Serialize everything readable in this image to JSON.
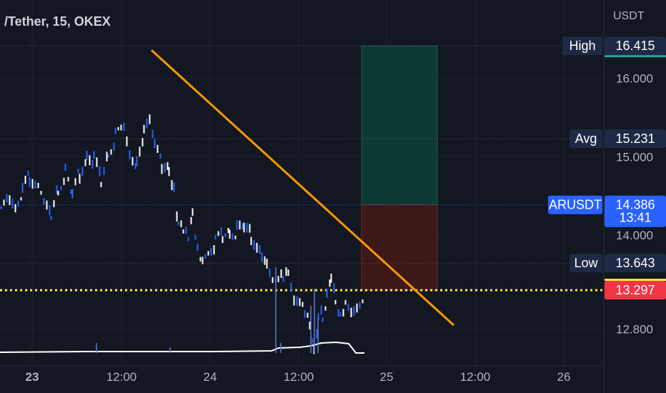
{
  "header": {
    "title": "/Tether, 15, OKEX",
    "unit": "USDT"
  },
  "chart_data": {
    "type": "candlestick",
    "symbol": "ARUSDT",
    "interval": "15",
    "exchange": "OKEX",
    "ylim": [
      12.35,
      17.0
    ],
    "y_ticks": [
      "16.000",
      "15.000",
      "14.000",
      "12.800"
    ],
    "x_ticks": [
      "23",
      "12:00",
      "24",
      "12:00",
      "25",
      "12:00",
      "26"
    ],
    "price_series": [
      [
        0,
        14.35
      ],
      [
        8,
        14.4
      ],
      [
        20,
        14.3
      ],
      [
        30,
        14.55
      ],
      [
        40,
        14.75
      ],
      [
        52,
        14.6
      ],
      [
        60,
        14.35
      ],
      [
        70,
        14.25
      ],
      [
        80,
        14.6
      ],
      [
        90,
        14.8
      ],
      [
        100,
        14.5
      ],
      [
        110,
        14.8
      ],
      [
        120,
        15.0
      ],
      [
        130,
        14.95
      ],
      [
        140,
        14.7
      ],
      [
        150,
        15.05
      ],
      [
        160,
        15.25
      ],
      [
        172,
        15.4
      ],
      [
        180,
        15.1
      ],
      [
        190,
        14.9
      ],
      [
        200,
        15.3
      ],
      [
        208,
        15.4
      ],
      [
        215,
        15.1
      ],
      [
        225,
        14.9
      ],
      [
        235,
        14.85
      ],
      [
        242,
        14.6
      ],
      [
        248,
        14.1
      ],
      [
        255,
        14.05
      ],
      [
        262,
        14.0
      ],
      [
        268,
        14.3
      ],
      [
        275,
        13.8
      ],
      [
        282,
        13.6
      ],
      [
        290,
        13.75
      ],
      [
        300,
        13.9
      ],
      [
        310,
        14.0
      ],
      [
        320,
        14.05
      ],
      [
        330,
        14.05
      ],
      [
        340,
        14.1
      ],
      [
        350,
        14.0
      ],
      [
        358,
        13.9
      ],
      [
        365,
        13.8
      ],
      [
        372,
        13.7
      ],
      [
        380,
        13.5
      ],
      [
        388,
        13.45
      ],
      [
        395,
        13.5
      ],
      [
        402,
        13.6
      ],
      [
        410,
        13.2
      ],
      [
        418,
        13.1
      ],
      [
        425,
        13.0
      ],
      [
        432,
        12.9
      ],
      [
        438,
        12.55
      ],
      [
        444,
        12.9
      ],
      [
        450,
        13.0
      ],
      [
        456,
        13.2
      ],
      [
        462,
        13.45
      ],
      [
        468,
        13.2
      ],
      [
        475,
        13.0
      ],
      [
        482,
        13.1
      ],
      [
        490,
        13.05
      ],
      [
        498,
        13.15
      ],
      [
        506,
        13.2
      ],
      [
        510,
        13.25
      ]
    ],
    "volume_series": [
      [
        0,
        493
      ],
      [
        120,
        492
      ],
      [
        200,
        492
      ],
      [
        300,
        492
      ],
      [
        380,
        491
      ],
      [
        390,
        487
      ],
      [
        420,
        486
      ],
      [
        435,
        484
      ],
      [
        450,
        480
      ],
      [
        470,
        479
      ],
      [
        488,
        481
      ],
      [
        498,
        494
      ],
      [
        510,
        494
      ]
    ],
    "volume_spikes": [
      [
        135,
        480
      ],
      [
        238,
        486
      ],
      [
        386,
        374
      ],
      [
        393,
        480
      ],
      [
        435,
        428
      ],
      [
        440,
        404
      ],
      [
        445,
        445
      ]
    ],
    "trendline": {
      "from_price": 16.36,
      "to_price": 12.85,
      "color": "#ff9800"
    },
    "position": {
      "entry": 14.386,
      "target": 16.415,
      "stop": 13.297,
      "profit_color": "#0d3b34",
      "loss_color": "#3d1818"
    },
    "stop_line": {
      "price": 13.297,
      "color": "#ffeb3b"
    },
    "tags": [
      {
        "label": "High",
        "value": "16.415",
        "value_color": "#1e2a45",
        "accent": "#26a69a"
      },
      {
        "label": "Avg",
        "value": "15.231",
        "value_color": "#1e2a45"
      },
      {
        "label": "ARUSDT",
        "value": "14.386",
        "sub": "13:41",
        "value_color": "#2962ff",
        "label_color": "#2962ff"
      },
      {
        "label": "Low",
        "value": "13.643",
        "value_color": "#1e2a45"
      },
      {
        "label": "",
        "value": "13.297",
        "value_color": "#f23645",
        "accent": "#ffeb3b"
      }
    ],
    "colors": {
      "background": "#131722",
      "price_line": "#ffffff",
      "price_fill": "#2962ff",
      "grid": "#1e222d",
      "dotted": "#5d606b"
    }
  }
}
